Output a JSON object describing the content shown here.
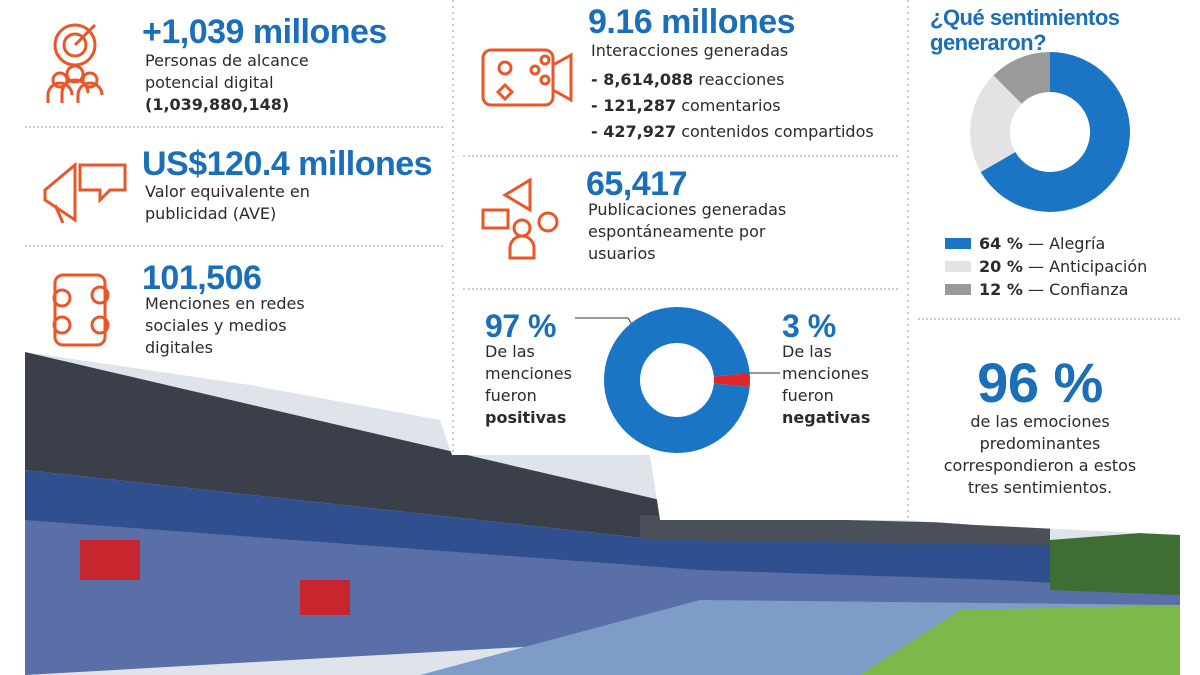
{
  "reach": {
    "headline": "+1,039 millones",
    "description": "Personas de alcance potencial digital",
    "detail": "(1,039,880,148)"
  },
  "ave": {
    "headline": "US$120.4 millones",
    "description": "Valor equivalente en publicidad (AVE)"
  },
  "mentions": {
    "headline": "101,506",
    "description": "Menciones en redes sociales y medios digitales"
  },
  "interactions": {
    "headline": "9.16 millones",
    "description": "Interacciones generadas",
    "items": [
      {
        "number": "- 8,614,088",
        "text": "reacciones"
      },
      {
        "number": "- 121,287",
        "text": "comentarios"
      },
      {
        "number": "- 427,927",
        "text": "contenidos compartidos"
      }
    ]
  },
  "publications": {
    "headline": "65,417",
    "description": "Publicaciones generadas espontáneamente por usuarios"
  },
  "polarity": {
    "slices": [
      {
        "value": 97,
        "label": "97 %",
        "text": "De las menciones fueron",
        "emphasis": "positivas",
        "color": "#1a75c4"
      },
      {
        "value": 3,
        "label": "3 %",
        "text": "De las menciones fueron",
        "emphasis": "negativas",
        "color": "#e0262b"
      }
    ]
  },
  "sentiments": {
    "title": "¿Qué sentimientos generaron?",
    "separator": "—",
    "slices": [
      {
        "value": 64,
        "label": "64 %",
        "name": "Alegría",
        "color": "#1a75c4"
      },
      {
        "value": 20,
        "label": "20 %",
        "name": "Anticipación",
        "color": "#e3e3e3"
      },
      {
        "value": 12,
        "label": "12 %",
        "name": "Confianza",
        "color": "#9a9a9a"
      }
    ]
  },
  "summary": {
    "value": "96 %",
    "text": "de las emociones predominantes correspondieron a estos tres sentimientos."
  }
}
